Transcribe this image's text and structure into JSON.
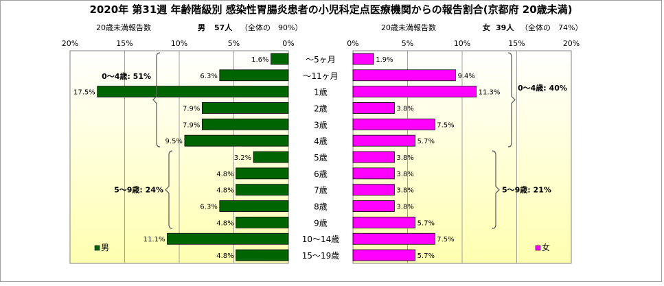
{
  "title": "2020年 第31週 年齢階級別 感染性胃腸炎患者の小児科定点医療機関からの報告割合(京都府 20歳未満)",
  "male_header": {
    "subtitle": "20歳未満報告数",
    "label": "男",
    "count": "57人",
    "share": "（全体の　90%）"
  },
  "female_header": {
    "subtitle": "20歳未満報告数",
    "label": "女",
    "count": "39人",
    "share": "（全体の　74%）"
  },
  "colors": {
    "male": "#006400",
    "female": "#ff00ff",
    "plot_bg_top": "#ffffff",
    "plot_bg_bottom": "#ffffb0"
  },
  "chart_data": [
    {
      "type": "bar",
      "orientation": "horizontal",
      "direction": "right-to-left",
      "series": [
        {
          "name": "男",
          "values": [
            1.6,
            6.3,
            17.5,
            7.9,
            7.9,
            9.5,
            3.2,
            4.8,
            4.8,
            6.3,
            4.8,
            11.1,
            4.8
          ],
          "labels": [
            "1.6%",
            "6.3%",
            "17.5%",
            "7.9%",
            "7.9%",
            "9.5%",
            "3.2%",
            "4.8%",
            "4.8%",
            "6.3%",
            "4.8%",
            "11.1%",
            "4.8%"
          ]
        }
      ],
      "categories": [
        "～5ヶ月",
        "～11ヶ月",
        "1歳",
        "2歳",
        "3歳",
        "4歳",
        "5歳",
        "6歳",
        "7歳",
        "8歳",
        "9歳",
        "10～14歳",
        "15～19歳"
      ],
      "xlim": [
        0,
        20
      ],
      "x_ticks": [
        "20%",
        "15%",
        "10%",
        "5%",
        "0%"
      ],
      "grid": true,
      "legend": "bottom-left",
      "groups": [
        {
          "label": "0～4歳: 51%",
          "from": 0,
          "to": 5
        },
        {
          "label": "5～9歳: 24%",
          "from": 6,
          "to": 10
        }
      ]
    },
    {
      "type": "bar",
      "orientation": "horizontal",
      "direction": "left-to-right",
      "series": [
        {
          "name": "女",
          "values": [
            1.9,
            9.4,
            11.3,
            3.8,
            7.5,
            5.7,
            3.8,
            3.8,
            3.8,
            3.8,
            5.7,
            7.5,
            5.7
          ],
          "labels": [
            "1.9%",
            "9.4%",
            "11.3%",
            "3.8%",
            "7.5%",
            "5.7%",
            "3.8%",
            "3.8%",
            "3.8%",
            "3.8%",
            "5.7%",
            "7.5%",
            "5.7%"
          ]
        }
      ],
      "categories": [
        "～5ヶ月",
        "～11ヶ月",
        "1歳",
        "2歳",
        "3歳",
        "4歳",
        "5歳",
        "6歳",
        "7歳",
        "8歳",
        "9歳",
        "10～14歳",
        "15～19歳"
      ],
      "xlim": [
        0,
        20
      ],
      "x_ticks": [
        "0%",
        "5%",
        "10%",
        "15%",
        "20%"
      ],
      "grid": true,
      "legend": "bottom-right",
      "groups": [
        {
          "label": "0～4歳: 40%",
          "from": 0,
          "to": 5
        },
        {
          "label": "5～9歳: 21%",
          "from": 6,
          "to": 10
        }
      ]
    }
  ]
}
